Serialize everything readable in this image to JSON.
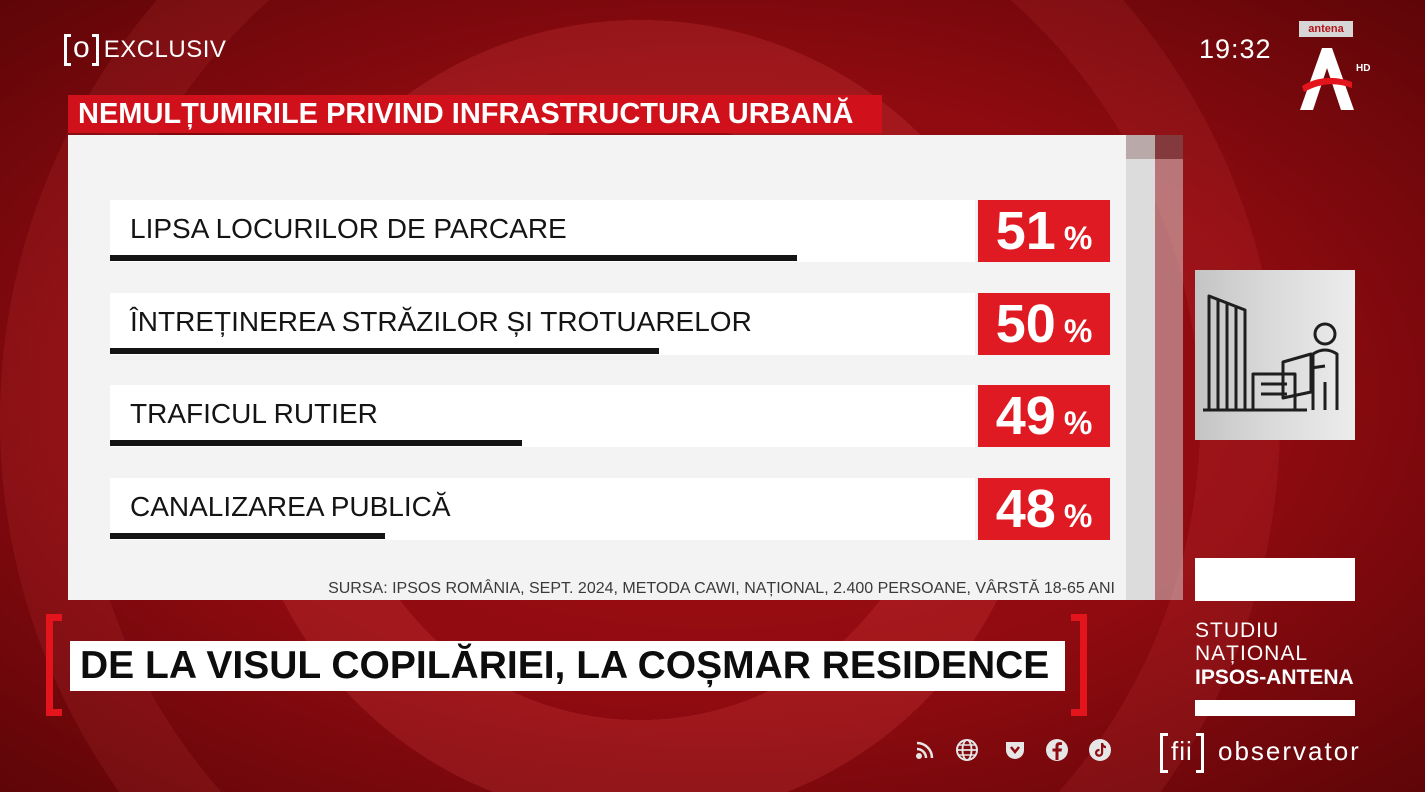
{
  "header": {
    "exclusiv_logo_letter": "o",
    "exclusiv_label": "EXCLUSIV",
    "clock": "19:32",
    "channel_tag": "antena",
    "channel_hd": "HD"
  },
  "chart_data": {
    "type": "bar",
    "orientation": "horizontal",
    "title": "NEMULȚUMIRILE PRIVIND INFRASTRUCTURA URBANĂ",
    "categories": [
      "LIPSA LOCURILOR DE PARCARE",
      "ÎNTREȚINEREA STRĂZILOR ȘI TROTUARELOR",
      "TRAFICUL RUTIER",
      "CANALIZAREA PUBLICĂ"
    ],
    "values": [
      51,
      50,
      49,
      48
    ],
    "unit": "%",
    "xlim": [
      46,
      52.3
    ],
    "grid": false,
    "legend": "none",
    "source": "SURSA: IPSOS ROMÂNIA, SEPT. 2024, METODA CAWI, NAȚIONAL, 2.400 PERSOANE, VÂRSTĂ 18-65 ANI"
  },
  "headline": "DE LA VISUL COPILĂRIEI, LA COȘMAR RESIDENCE",
  "study_badge": {
    "line1": "STUDIU",
    "line2": "NAȚIONAL",
    "line3": "IPSOS-ANTENA",
    "icon": "urban-planning-icon"
  },
  "footer": {
    "brand_logo_text": "fii",
    "brand_name": "observator",
    "social_icons": [
      "podcast-icon",
      "globe-icon",
      "download-icon",
      "facebook-icon",
      "tiktok-icon"
    ]
  },
  "colors": {
    "background": "#8f0b10",
    "accent_red": "#e01a22",
    "title_red": "#d0101a",
    "panel": "#f3f3f3",
    "text_dark": "#141414"
  }
}
